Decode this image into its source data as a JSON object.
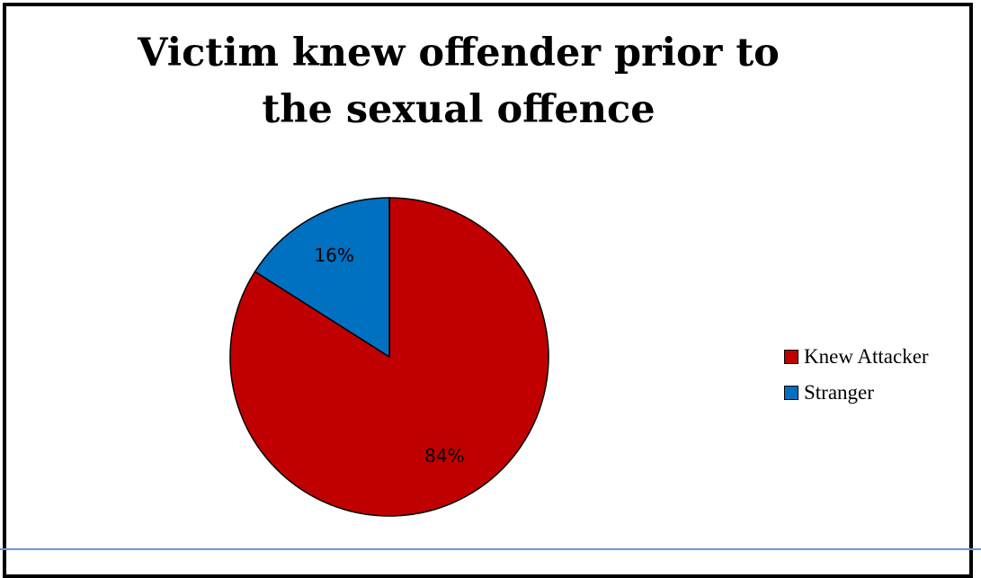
{
  "chart_data": {
    "type": "pie",
    "title": "Victim knew offender prior to the sexual offence",
    "categories": [
      "Knew Attacker",
      "Stranger"
    ],
    "values": [
      84,
      16
    ],
    "data_labels": [
      "84%",
      "16%"
    ],
    "colors": [
      "#c00000",
      "#0070c0"
    ],
    "legend_position": "right",
    "start_angle_deg": 0,
    "direction": "clockwise"
  },
  "legend": {
    "items": [
      {
        "label": "Knew Attacker",
        "color": "#c00000"
      },
      {
        "label": "Stranger",
        "color": "#0070c0"
      }
    ]
  }
}
